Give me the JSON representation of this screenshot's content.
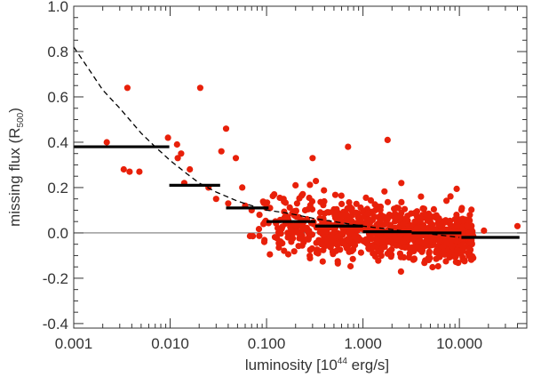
{
  "chart_data": {
    "type": "scatter",
    "title": "",
    "xlabel": {
      "prefix": "luminosity [10",
      "superscript": "44",
      "suffix": " erg/s]"
    },
    "ylabel": {
      "prefix": "missing flux (R",
      "subscript": "500",
      "suffix": ")"
    },
    "xscale": "log",
    "xlim": [
      0.001,
      50
    ],
    "ylim": [
      -0.42,
      1.0
    ],
    "x_ticks": [
      0.001,
      0.01,
      0.1,
      1,
      10
    ],
    "x_tick_labels": [
      "0.001",
      "0.010",
      "0.100",
      "1.000",
      "10.000"
    ],
    "y_ticks": [
      -0.4,
      -0.2,
      0.0,
      0.2,
      0.4,
      0.6,
      0.8,
      1.0
    ],
    "y_tick_labels": [
      "-0.4",
      "-0.2",
      "0.0",
      "0.2",
      "0.4",
      "0.6",
      "0.8",
      "1.0"
    ],
    "reference_line_y": 0.0,
    "point_color": "#e8200a",
    "highlighted_points": [
      {
        "x": 0.0022,
        "y": 0.4
      },
      {
        "x": 0.0033,
        "y": 0.28
      },
      {
        "x": 0.0036,
        "y": 0.64
      },
      {
        "x": 0.0038,
        "y": 0.27
      },
      {
        "x": 0.0048,
        "y": 0.27
      },
      {
        "x": 0.0095,
        "y": 0.42
      },
      {
        "x": 0.0118,
        "y": 0.39
      },
      {
        "x": 0.012,
        "y": 0.33
      },
      {
        "x": 0.013,
        "y": 0.35
      },
      {
        "x": 0.014,
        "y": 0.22
      },
      {
        "x": 0.016,
        "y": 0.28
      },
      {
        "x": 0.0205,
        "y": 0.64
      },
      {
        "x": 0.038,
        "y": 0.46
      },
      {
        "x": 0.034,
        "y": 0.36
      },
      {
        "x": 0.048,
        "y": 0.33
      },
      {
        "x": 0.04,
        "y": 0.13
      },
      {
        "x": 0.03,
        "y": 0.15
      },
      {
        "x": 0.025,
        "y": 0.2
      },
      {
        "x": 0.06,
        "y": 0.12
      },
      {
        "x": 0.07,
        "y": 0.1
      },
      {
        "x": 0.056,
        "y": 0.2
      },
      {
        "x": 0.12,
        "y": 0.17
      },
      {
        "x": 0.2,
        "y": 0.21
      },
      {
        "x": 0.15,
        "y": 0.15
      },
      {
        "x": 0.3,
        "y": 0.33
      },
      {
        "x": 0.7,
        "y": 0.38
      },
      {
        "x": 1.8,
        "y": 0.41
      },
      {
        "x": 2.5,
        "y": 0.22
      },
      {
        "x": 4.0,
        "y": 0.16
      },
      {
        "x": 9.0,
        "y": 0.06
      },
      {
        "x": 12.0,
        "y": 0.03
      },
      {
        "x": 18.0,
        "y": 0.01
      },
      {
        "x": 40.0,
        "y": 0.03
      }
    ],
    "cloud": {
      "x_range": [
        0.06,
        14
      ],
      "y_center_at_low_x": 0.07,
      "y_center_at_high_x": -0.02,
      "y_spread": 0.06,
      "count": 900
    },
    "binned_means": [
      {
        "x_start": 0.001,
        "x_end": 0.0098,
        "y": 0.38
      },
      {
        "x_start": 0.0098,
        "x_end": 0.033,
        "y": 0.21
      },
      {
        "x_start": 0.038,
        "x_end": 0.105,
        "y": 0.11
      },
      {
        "x_start": 0.1,
        "x_end": 0.32,
        "y": 0.05
      },
      {
        "x_start": 0.32,
        "x_end": 1.0,
        "y": 0.03
      },
      {
        "x_start": 1.0,
        "x_end": 3.2,
        "y": 0.005
      },
      {
        "x_start": 3.2,
        "x_end": 10.5,
        "y": 0.0
      },
      {
        "x_start": 10.5,
        "x_end": 42.0,
        "y": -0.02
      }
    ],
    "fit_curve": {
      "style": "dashed",
      "points": [
        [
          0.001,
          0.82
        ],
        [
          0.0015,
          0.71
        ],
        [
          0.002,
          0.63
        ],
        [
          0.003,
          0.55
        ],
        [
          0.005,
          0.44
        ],
        [
          0.007,
          0.38
        ],
        [
          0.01,
          0.32
        ],
        [
          0.015,
          0.26
        ],
        [
          0.02,
          0.22
        ],
        [
          0.03,
          0.18
        ],
        [
          0.05,
          0.14
        ],
        [
          0.07,
          0.12
        ],
        [
          0.1,
          0.1
        ],
        [
          0.15,
          0.09
        ],
        [
          0.2,
          0.08
        ],
        [
          0.3,
          0.065
        ],
        [
          0.5,
          0.05
        ],
        [
          0.7,
          0.04
        ],
        [
          1.0,
          0.03
        ],
        [
          2.0,
          0.015
        ],
        [
          3.0,
          0.005
        ],
        [
          5.0,
          -0.005
        ],
        [
          7.0,
          -0.012
        ],
        [
          10.0,
          -0.02
        ]
      ]
    }
  }
}
